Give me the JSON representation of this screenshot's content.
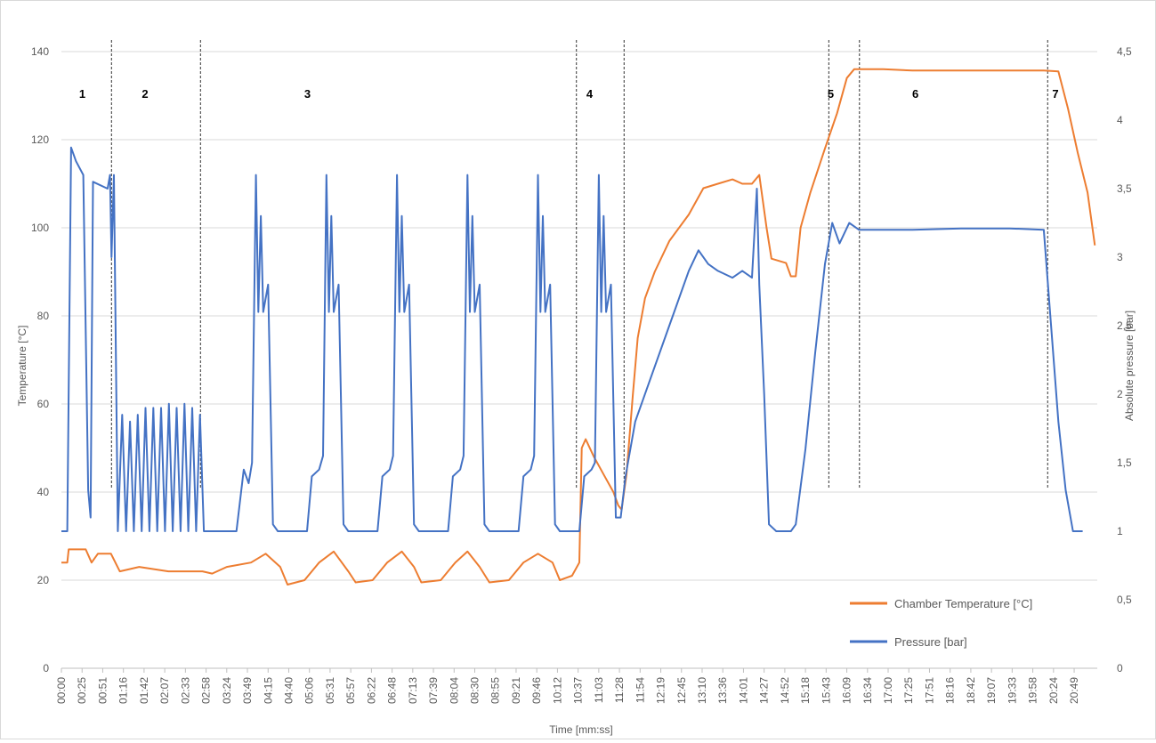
{
  "chart_data": {
    "type": "line",
    "title": "",
    "xlabel": "Time [mm:ss]",
    "ylabel": "Temperature [°C]",
    "y2label": "Absolute pressure [bar]",
    "ylim": [
      0,
      140
    ],
    "y2lim": [
      0,
      4.5
    ],
    "grid": true,
    "legend_position": "bottom-right",
    "colors": {
      "temperature": "#ED7D31",
      "pressure": "#4472C4"
    },
    "x_ticks": [
      "00:00",
      "00:25",
      "00:51",
      "01:16",
      "01:42",
      "02:07",
      "02:33",
      "02:58",
      "03:24",
      "03:49",
      "04:15",
      "04:40",
      "05:06",
      "05:31",
      "05:57",
      "06:22",
      "06:48",
      "07:13",
      "07:39",
      "08:04",
      "08:30",
      "08:55",
      "09:21",
      "09:46",
      "10:12",
      "10:37",
      "11:03",
      "11:28",
      "11:54",
      "12:19",
      "12:45",
      "13:10",
      "13:36",
      "14:01",
      "14:27",
      "14:52",
      "15:18",
      "15:43",
      "16:09",
      "16:34",
      "17:00",
      "17:25",
      "17:51",
      "18:16",
      "18:42",
      "19:07",
      "19:33",
      "19:58",
      "20:24",
      "20:49"
    ],
    "y_ticks": [
      "0",
      "20",
      "40",
      "60",
      "80",
      "100",
      "120",
      "140"
    ],
    "y2_ticks": [
      "0",
      "0,5",
      "1",
      "1,5",
      "2",
      "2,5",
      "3",
      "3,5",
      "4",
      "4,5"
    ],
    "phases": [
      {
        "label": "1",
        "x": 0.43
      },
      {
        "label": "2",
        "x": 1.72
      },
      {
        "label": "3",
        "x": 5.06
      },
      {
        "label": "4",
        "x": 10.86
      },
      {
        "label": "5",
        "x": 15.82
      },
      {
        "label": "6",
        "x": 17.56
      },
      {
        "label": "7",
        "x": 20.44
      }
    ],
    "phase_boundaries": [
      1.03,
      2.86,
      10.59,
      11.57,
      15.78,
      16.41,
      20.28
    ],
    "series": [
      {
        "name": "Chamber Temperature [°C]",
        "axis": "left",
        "points": [
          [
            0,
            24
          ],
          [
            0.12,
            24
          ],
          [
            0.15,
            27
          ],
          [
            0.5,
            27
          ],
          [
            0.62,
            24
          ],
          [
            0.75,
            26
          ],
          [
            1.02,
            26
          ],
          [
            1.2,
            22
          ],
          [
            1.6,
            23
          ],
          [
            2.2,
            22
          ],
          [
            2.9,
            22
          ],
          [
            3.1,
            21.5
          ],
          [
            3.4,
            23
          ],
          [
            3.9,
            24
          ],
          [
            4.2,
            26
          ],
          [
            4.5,
            23
          ],
          [
            4.65,
            19
          ],
          [
            5.0,
            20
          ],
          [
            5.3,
            24
          ],
          [
            5.6,
            26.5
          ],
          [
            5.9,
            22
          ],
          [
            6.05,
            19.5
          ],
          [
            6.4,
            20
          ],
          [
            6.7,
            24
          ],
          [
            7.0,
            26.5
          ],
          [
            7.25,
            23
          ],
          [
            7.4,
            19.5
          ],
          [
            7.8,
            20
          ],
          [
            8.1,
            24
          ],
          [
            8.35,
            26.5
          ],
          [
            8.6,
            23
          ],
          [
            8.8,
            19.5
          ],
          [
            9.2,
            20
          ],
          [
            9.5,
            24
          ],
          [
            9.8,
            26
          ],
          [
            10.1,
            24
          ],
          [
            10.25,
            20
          ],
          [
            10.5,
            21
          ],
          [
            10.65,
            24
          ],
          [
            10.7,
            50
          ],
          [
            10.78,
            52
          ],
          [
            10.95,
            48
          ],
          [
            11.15,
            44
          ],
          [
            11.35,
            40
          ],
          [
            11.45,
            37
          ],
          [
            11.52,
            36
          ],
          [
            11.62,
            44
          ],
          [
            11.75,
            62
          ],
          [
            11.85,
            75
          ],
          [
            12.0,
            84
          ],
          [
            12.2,
            90
          ],
          [
            12.5,
            97
          ],
          [
            12.9,
            103
          ],
          [
            13.2,
            109
          ],
          [
            13.5,
            110
          ],
          [
            13.8,
            111
          ],
          [
            14.0,
            110
          ],
          [
            14.2,
            110
          ],
          [
            14.35,
            112
          ],
          [
            14.5,
            100
          ],
          [
            14.6,
            93
          ],
          [
            14.9,
            92
          ],
          [
            15.0,
            89
          ],
          [
            15.1,
            89
          ],
          [
            15.2,
            100
          ],
          [
            15.4,
            108
          ],
          [
            15.7,
            118
          ],
          [
            15.95,
            126
          ],
          [
            16.15,
            134
          ],
          [
            16.3,
            136
          ],
          [
            16.6,
            136
          ],
          [
            16.9,
            136
          ],
          [
            17.5,
            135.7
          ],
          [
            18.5,
            135.7
          ],
          [
            19.5,
            135.7
          ],
          [
            20.2,
            135.7
          ],
          [
            20.5,
            135.5
          ],
          [
            20.7,
            127
          ],
          [
            20.9,
            117
          ],
          [
            21.1,
            108
          ],
          [
            21.25,
            96
          ]
        ]
      },
      {
        "name": "Pressure [bar]",
        "axis": "right",
        "points": [
          [
            0,
            1
          ],
          [
            0.12,
            1
          ],
          [
            0.2,
            3.8
          ],
          [
            0.3,
            3.7
          ],
          [
            0.45,
            3.6
          ],
          [
            0.55,
            1.3
          ],
          [
            0.6,
            1.1
          ],
          [
            0.65,
            3.55
          ],
          [
            0.95,
            3.5
          ],
          [
            1.0,
            3.6
          ],
          [
            1.03,
            3.0
          ],
          [
            1.08,
            3.6
          ],
          [
            1.16,
            1.0
          ],
          [
            1.25,
            1.85
          ],
          [
            1.33,
            1.0
          ],
          [
            1.41,
            1.8
          ],
          [
            1.49,
            1.0
          ],
          [
            1.57,
            1.85
          ],
          [
            1.65,
            1.0
          ],
          [
            1.73,
            1.9
          ],
          [
            1.81,
            1.0
          ],
          [
            1.89,
            1.9
          ],
          [
            1.97,
            1.0
          ],
          [
            2.05,
            1.9
          ],
          [
            2.13,
            1.0
          ],
          [
            2.21,
            1.93
          ],
          [
            2.29,
            1.0
          ],
          [
            2.37,
            1.9
          ],
          [
            2.45,
            1.0
          ],
          [
            2.53,
            1.93
          ],
          [
            2.61,
            1.0
          ],
          [
            2.69,
            1.9
          ],
          [
            2.77,
            1.0
          ],
          [
            2.85,
            1.85
          ],
          [
            2.93,
            1.0
          ],
          [
            3.6,
            1.0
          ],
          [
            3.75,
            1.45
          ],
          [
            3.85,
            1.35
          ],
          [
            3.92,
            1.5
          ],
          [
            4.0,
            3.6
          ],
          [
            4.05,
            2.6
          ],
          [
            4.1,
            3.3
          ],
          [
            4.15,
            2.6
          ],
          [
            4.25,
            2.8
          ],
          [
            4.35,
            1.05
          ],
          [
            4.45,
            1.0
          ],
          [
            5.05,
            1.0
          ],
          [
            5.15,
            1.4
          ],
          [
            5.3,
            1.45
          ],
          [
            5.38,
            1.55
          ],
          [
            5.45,
            3.6
          ],
          [
            5.5,
            2.6
          ],
          [
            5.55,
            3.3
          ],
          [
            5.6,
            2.6
          ],
          [
            5.7,
            2.8
          ],
          [
            5.8,
            1.05
          ],
          [
            5.9,
            1.0
          ],
          [
            6.5,
            1.0
          ],
          [
            6.6,
            1.4
          ],
          [
            6.75,
            1.45
          ],
          [
            6.82,
            1.55
          ],
          [
            6.9,
            3.6
          ],
          [
            6.95,
            2.6
          ],
          [
            7.0,
            3.3
          ],
          [
            7.05,
            2.6
          ],
          [
            7.15,
            2.8
          ],
          [
            7.25,
            1.05
          ],
          [
            7.35,
            1.0
          ],
          [
            7.95,
            1.0
          ],
          [
            8.05,
            1.4
          ],
          [
            8.2,
            1.45
          ],
          [
            8.27,
            1.55
          ],
          [
            8.35,
            3.6
          ],
          [
            8.4,
            2.6
          ],
          [
            8.45,
            3.3
          ],
          [
            8.5,
            2.6
          ],
          [
            8.6,
            2.8
          ],
          [
            8.7,
            1.05
          ],
          [
            8.8,
            1.0
          ],
          [
            9.4,
            1.0
          ],
          [
            9.5,
            1.4
          ],
          [
            9.65,
            1.45
          ],
          [
            9.72,
            1.55
          ],
          [
            9.8,
            3.6
          ],
          [
            9.85,
            2.6
          ],
          [
            9.9,
            3.3
          ],
          [
            9.95,
            2.6
          ],
          [
            10.05,
            2.8
          ],
          [
            10.15,
            1.05
          ],
          [
            10.25,
            1.0
          ],
          [
            10.65,
            1.0
          ],
          [
            10.75,
            1.4
          ],
          [
            10.9,
            1.45
          ],
          [
            10.97,
            1.5
          ],
          [
            11.05,
            3.6
          ],
          [
            11.1,
            2.6
          ],
          [
            11.15,
            3.3
          ],
          [
            11.2,
            2.6
          ],
          [
            11.3,
            2.8
          ],
          [
            11.4,
            1.1
          ],
          [
            11.5,
            1.1
          ],
          [
            11.6,
            1.4
          ],
          [
            11.8,
            1.8
          ],
          [
            12.1,
            2.1
          ],
          [
            12.5,
            2.5
          ],
          [
            12.9,
            2.9
          ],
          [
            13.1,
            3.05
          ],
          [
            13.3,
            2.95
          ],
          [
            13.5,
            2.9
          ],
          [
            13.8,
            2.85
          ],
          [
            14.0,
            2.9
          ],
          [
            14.2,
            2.85
          ],
          [
            14.3,
            3.5
          ],
          [
            14.35,
            2.8
          ],
          [
            14.45,
            2.0
          ],
          [
            14.55,
            1.05
          ],
          [
            14.7,
            1.0
          ],
          [
            15.0,
            1.0
          ],
          [
            15.1,
            1.05
          ],
          [
            15.3,
            1.6
          ],
          [
            15.5,
            2.3
          ],
          [
            15.7,
            2.95
          ],
          [
            15.85,
            3.25
          ],
          [
            16.0,
            3.1
          ],
          [
            16.2,
            3.25
          ],
          [
            16.4,
            3.2
          ],
          [
            16.6,
            3.2
          ],
          [
            17.5,
            3.2
          ],
          [
            18.5,
            3.21
          ],
          [
            19.5,
            3.21
          ],
          [
            20.2,
            3.2
          ],
          [
            20.35,
            2.5
          ],
          [
            20.5,
            1.8
          ],
          [
            20.65,
            1.3
          ],
          [
            20.8,
            1.0
          ],
          [
            21.0,
            1.0
          ]
        ]
      }
    ]
  }
}
